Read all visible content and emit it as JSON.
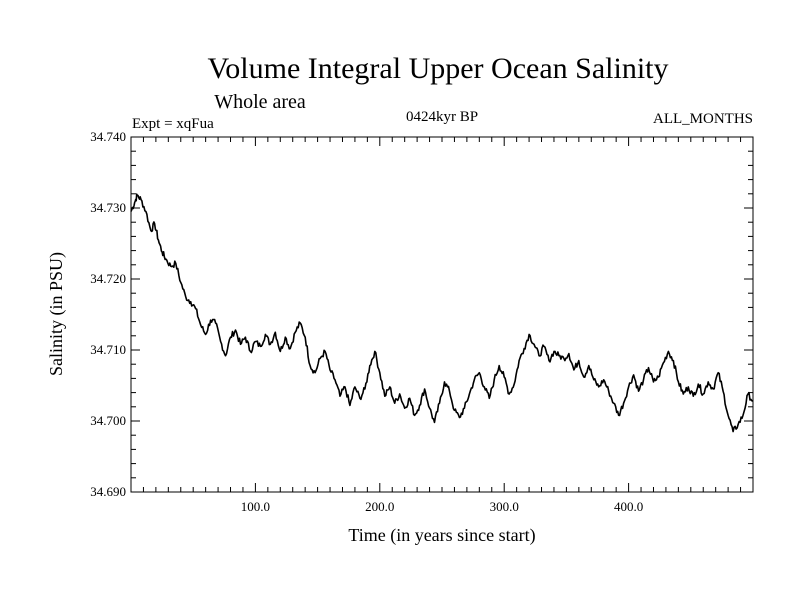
{
  "chart_data": {
    "type": "line",
    "title": "Volume Integral Upper Ocean Salinity",
    "subtitle": "Whole area",
    "experiment": "Expt = xqFua",
    "period": "0424kyr BP",
    "months": "ALL_MONTHS",
    "xlabel": "Time (in years since start)",
    "ylabel": "Salinity (in PSU)",
    "xlim": [
      0,
      500
    ],
    "ylim": [
      34.69,
      34.74
    ],
    "x_ticks": [
      100,
      200,
      300,
      400
    ],
    "x_tick_labels": [
      "100.0",
      "200.0",
      "300.0",
      "400.0"
    ],
    "y_ticks": [
      34.69,
      34.7,
      34.71,
      34.72,
      34.73,
      34.74
    ],
    "y_tick_labels": [
      "34.690",
      "34.700",
      "34.710",
      "34.720",
      "34.730",
      "34.740"
    ],
    "series": [
      {
        "name": "Salinity",
        "x": [
          0,
          3,
          5,
          8,
          12,
          16,
          19,
          22,
          25,
          28,
          32,
          36,
          40,
          44,
          48,
          52,
          56,
          60,
          64,
          68,
          72,
          76,
          80,
          84,
          88,
          92,
          96,
          100,
          104,
          108,
          112,
          116,
          120,
          124,
          128,
          132,
          136,
          140,
          144,
          148,
          152,
          156,
          160,
          164,
          168,
          172,
          176,
          180,
          184,
          188,
          192,
          196,
          200,
          204,
          208,
          212,
          216,
          220,
          224,
          228,
          232,
          236,
          240,
          244,
          248,
          252,
          256,
          260,
          264,
          268,
          272,
          276,
          280,
          284,
          288,
          292,
          296,
          300,
          304,
          308,
          312,
          316,
          320,
          324,
          328,
          332,
          336,
          340,
          344,
          348,
          352,
          356,
          360,
          364,
          368,
          372,
          376,
          380,
          384,
          388,
          392,
          396,
          400,
          404,
          408,
          412,
          416,
          420,
          424,
          428,
          432,
          436,
          440,
          444,
          448,
          452,
          456,
          460,
          464,
          468,
          472,
          476,
          480,
          484,
          488,
          492,
          496,
          500
        ],
        "values": [
          34.7295,
          34.7308,
          34.7318,
          34.7312,
          34.7295,
          34.7268,
          34.7278,
          34.7255,
          34.7238,
          34.7228,
          34.7218,
          34.7222,
          34.7195,
          34.7175,
          34.7168,
          34.7158,
          34.7135,
          34.7122,
          34.7142,
          34.7138,
          34.7112,
          34.7092,
          34.7118,
          34.7128,
          34.7108,
          34.7118,
          34.7098,
          34.7112,
          34.7105,
          34.7122,
          34.7108,
          34.7125,
          34.7098,
          34.7118,
          34.7102,
          34.7125,
          34.7138,
          34.7118,
          34.7078,
          34.7068,
          34.7088,
          34.7098,
          34.7072,
          34.7058,
          34.7035,
          34.7048,
          34.7022,
          34.7048,
          34.7032,
          34.7045,
          34.7078,
          34.7098,
          34.7068,
          34.7035,
          34.7048,
          34.7025,
          34.7038,
          34.7018,
          34.7032,
          34.7008,
          34.7022,
          34.7045,
          34.7018,
          34.6998,
          34.7025,
          34.7055,
          34.7042,
          34.7015,
          34.7005,
          34.7018,
          34.7038,
          34.7058,
          34.7068,
          34.7048,
          34.7032,
          34.7058,
          34.7078,
          34.7062,
          34.7038,
          34.7052,
          34.7085,
          34.7102,
          34.7122,
          34.7108,
          34.7092,
          34.7105,
          34.7085,
          34.7098,
          34.7092,
          34.7088,
          34.7095,
          34.7072,
          34.7085,
          34.7062,
          34.7078,
          34.7058,
          34.7048,
          34.7058,
          34.7042,
          34.7025,
          34.7008,
          34.7025,
          34.7048,
          34.7065,
          34.7042,
          34.7058,
          34.7075,
          34.7055,
          34.7062,
          34.7082,
          34.7098,
          34.7085,
          34.7055,
          34.7038,
          34.7048,
          34.7035,
          34.7052,
          34.7038,
          34.7055,
          34.7045,
          34.7068,
          34.7042,
          34.7008,
          34.6985,
          34.6995,
          34.7008,
          34.7038,
          34.7028
        ]
      }
    ]
  }
}
